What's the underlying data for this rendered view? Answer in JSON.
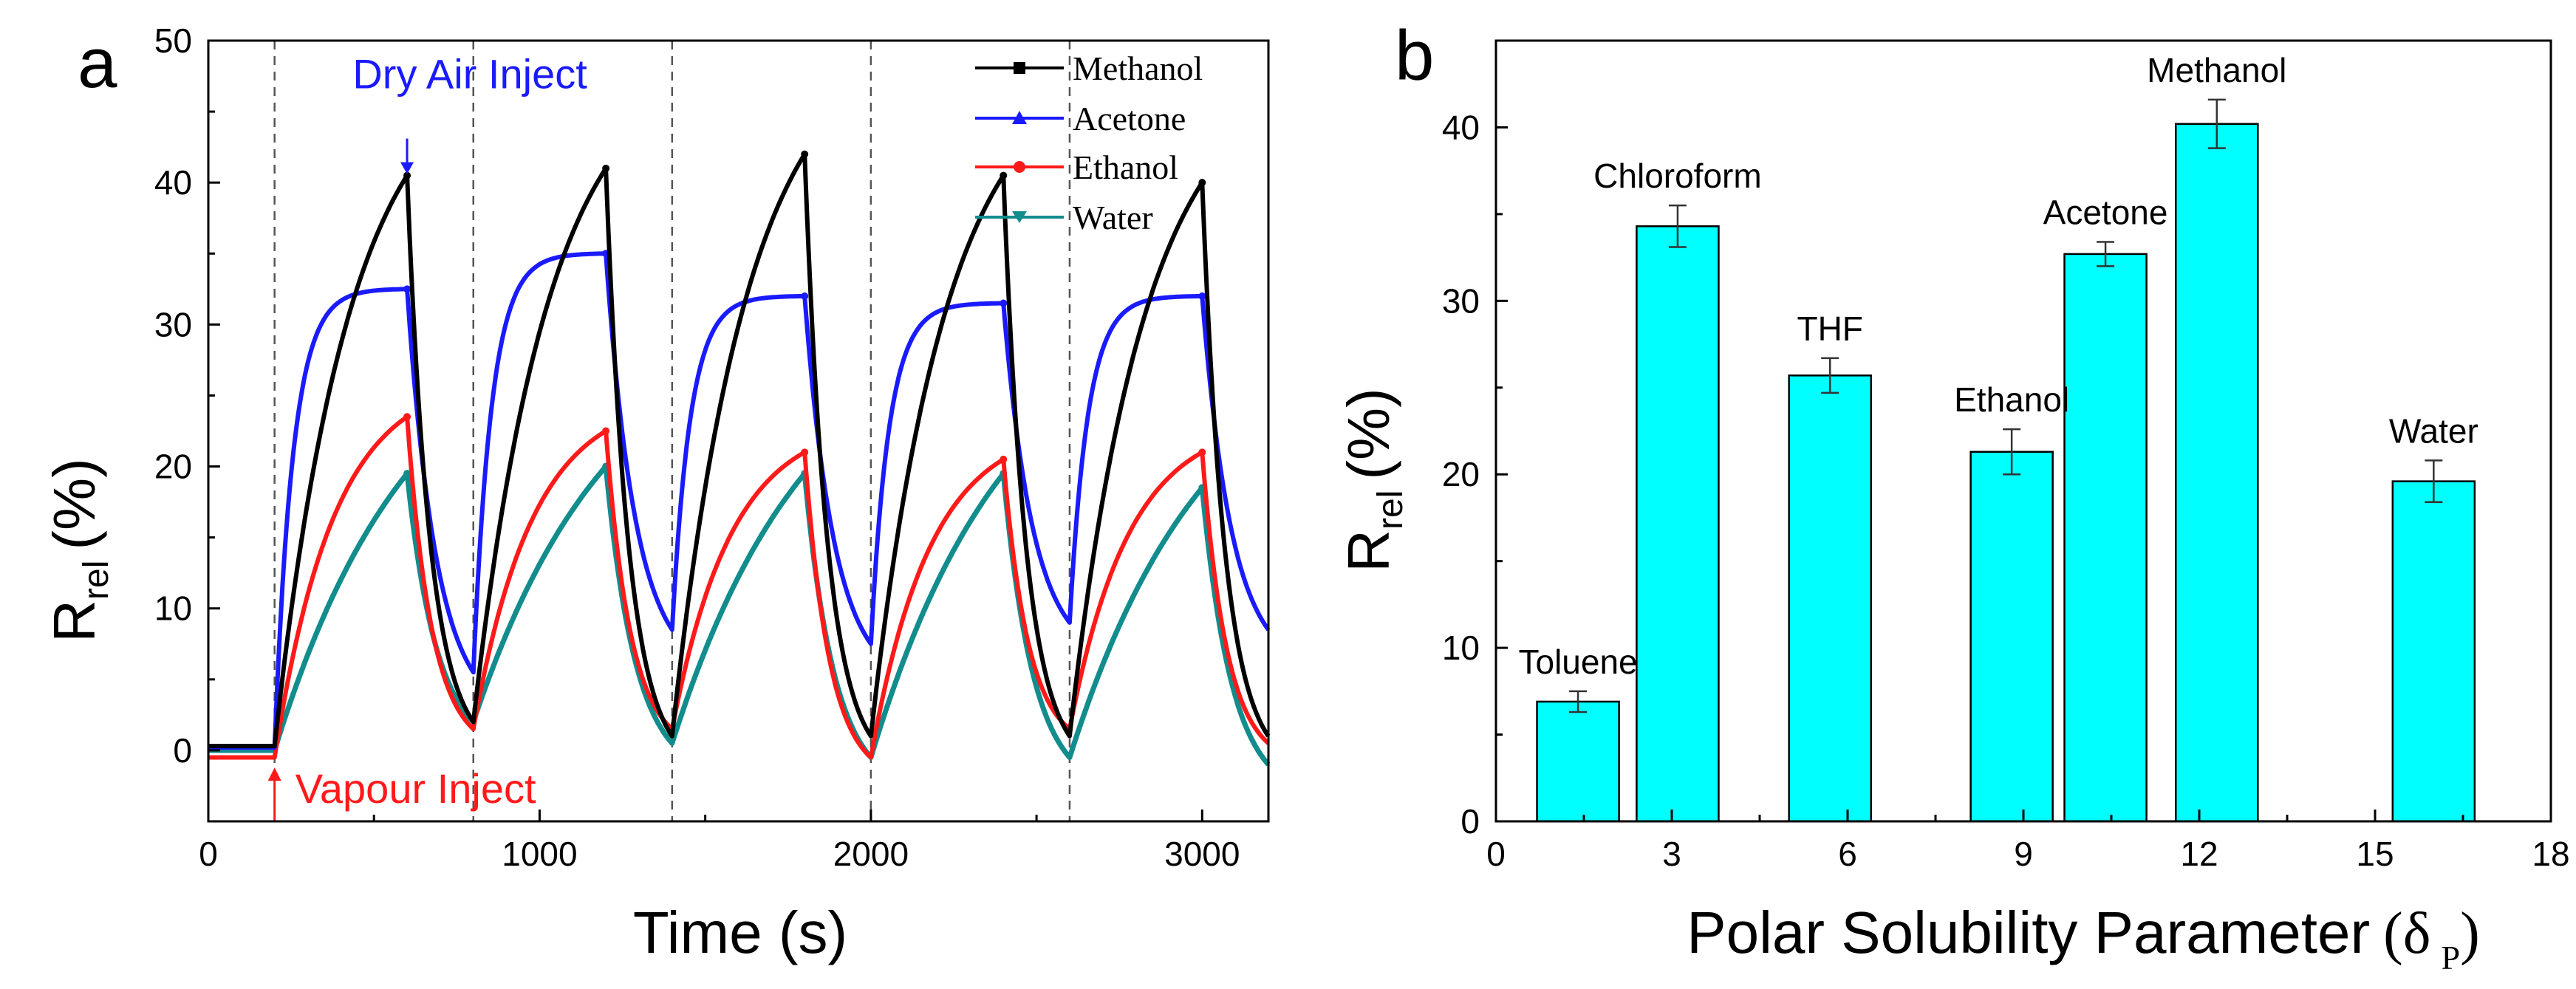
{
  "chart_data": [
    {
      "type": "line",
      "panel_label": "a",
      "xlabel": "Time (s)",
      "ylabel_main": "R",
      "ylabel_sub": "rel",
      "ylabel_unit": "(%)",
      "xlim": [
        0,
        3200
      ],
      "ylim": [
        -5,
        50
      ],
      "xticks": [
        0,
        1000,
        2000,
        3000
      ],
      "xtick_labels": [
        "0",
        "1000",
        "2000",
        "3000"
      ],
      "yticks": [
        0,
        10,
        20,
        30,
        40,
        50
      ],
      "ytick_labels": [
        "0",
        "10",
        "20",
        "30",
        "40",
        "50"
      ],
      "vlines": [
        200,
        800,
        1400,
        2000,
        2600
      ],
      "cycle_start_times": [
        200,
        800,
        1400,
        2000,
        2600
      ],
      "cycle_peak_times": [
        600,
        1200,
        1800,
        2400,
        3000
      ],
      "legend_position": "top-right",
      "annotations": [
        {
          "text": "Dry Air Inject",
          "x": 600,
          "y": 40.5,
          "color": "#1a1aff"
        },
        {
          "text": "Vapour Inject",
          "x": 200,
          "y": -1,
          "color": "#ff1a1a"
        }
      ],
      "series": [
        {
          "name": "Methanol",
          "color": "#000000",
          "marker": "square",
          "curve": "saturating",
          "tau": 230,
          "decay_tau": 70,
          "baseline_start": 0.3,
          "peaks": [
            40.5,
            41,
            42,
            40.5,
            40
          ],
          "baselines_after": [
            2.0,
            1.0,
            1.0,
            1.0,
            1.0
          ]
        },
        {
          "name": "Acetone",
          "color": "#1a1aff",
          "marker": "triangle",
          "curve": "fast-saturating",
          "tau": 55,
          "decay_tau": 90,
          "baseline_start": 0.2,
          "peaks": [
            32.5,
            35,
            32,
            31.5,
            32
          ],
          "baselines_after": [
            5.5,
            8.5,
            7.5,
            9,
            8.5
          ]
        },
        {
          "name": "Ethanol",
          "color": "#ff1a1a",
          "marker": "circle",
          "curve": "saturating",
          "tau": 180,
          "decay_tau": 75,
          "baseline_start": -0.5,
          "peaks": [
            23.5,
            22.5,
            21,
            20.5,
            21
          ],
          "baselines_after": [
            1.5,
            1.5,
            -0.5,
            1.5,
            0.5
          ]
        },
        {
          "name": "Water",
          "color": "#128c8c",
          "marker": "triangle-down",
          "curve": "concave",
          "tau": 420,
          "decay_tau": 90,
          "baseline_start": 0,
          "peaks": [
            19.5,
            20,
            19.5,
            19.5,
            18.5
          ],
          "baselines_after": [
            2.0,
            0.5,
            -0.5,
            -0.5,
            -1.0
          ]
        }
      ]
    },
    {
      "type": "bar",
      "panel_label": "b",
      "xlabel": "Polar Solubility Parameter",
      "xlabel_symbol": "δ",
      "xlabel_sub": "P",
      "ylabel_main": "R",
      "ylabel_sub": "rel",
      "ylabel_unit": "(%)",
      "xlim": [
        0,
        18
      ],
      "ylim": [
        0,
        45
      ],
      "xticks": [
        0,
        3,
        6,
        9,
        12,
        15,
        18
      ],
      "xtick_labels": [
        "0",
        "3",
        "6",
        "9",
        "12",
        "15",
        "18"
      ],
      "yticks": [
        0,
        10,
        20,
        30,
        40
      ],
      "ytick_labels": [
        "0",
        "10",
        "20",
        "30",
        "40"
      ],
      "bar_color": "#00ffff",
      "bar_width": 1.4,
      "categories": [
        "Toluene",
        "Chloroform",
        "THF",
        "Ethanol",
        "Acetone",
        "Methanol",
        "Water"
      ],
      "x": [
        1.4,
        3.1,
        5.7,
        8.8,
        10.4,
        12.3,
        16.0
      ],
      "values": [
        6.9,
        34.3,
        25.7,
        21.3,
        32.7,
        40.2,
        19.6
      ],
      "errors": [
        0.6,
        1.2,
        1.0,
        1.3,
        0.7,
        1.4,
        1.2
      ]
    }
  ]
}
